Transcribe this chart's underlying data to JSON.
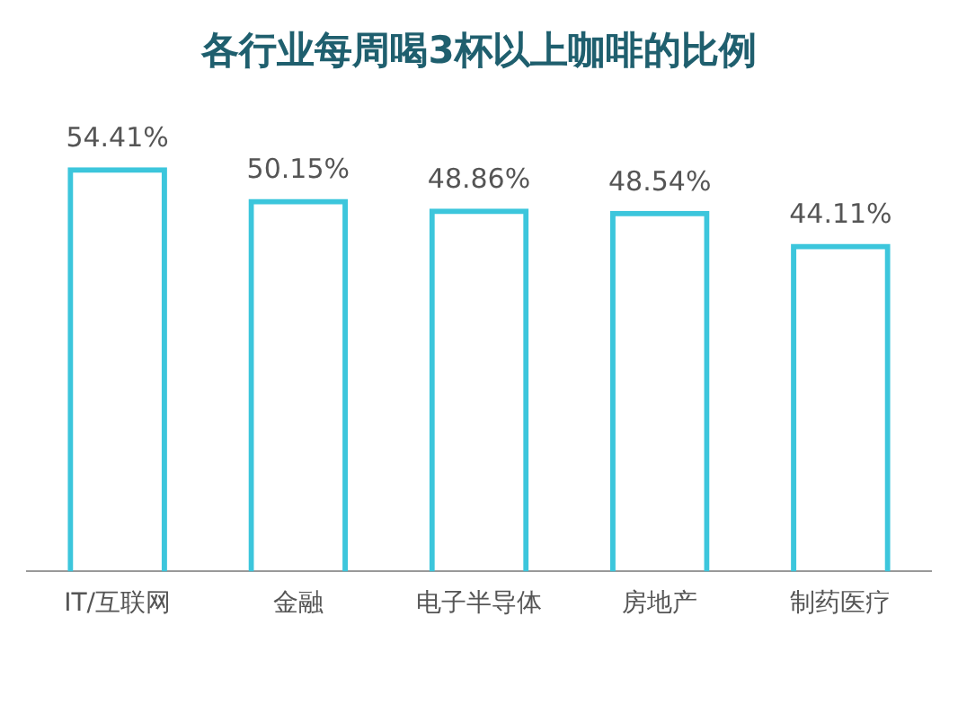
{
  "chart_data": {
    "type": "bar",
    "title": "各行业每周喝3杯以上咖啡的比例",
    "categories": [
      "IT/互联网",
      "金融",
      "电子半导体",
      "房地产",
      "制药医疗"
    ],
    "values": [
      54.41,
      50.15,
      48.86,
      48.54,
      44.11
    ],
    "value_labels": [
      "54.41%",
      "50.15%",
      "48.86%",
      "48.54%",
      "44.11%"
    ],
    "color": "#3cc6dc",
    "tick_labels": "x",
    "grid": false,
    "legend": false
  }
}
